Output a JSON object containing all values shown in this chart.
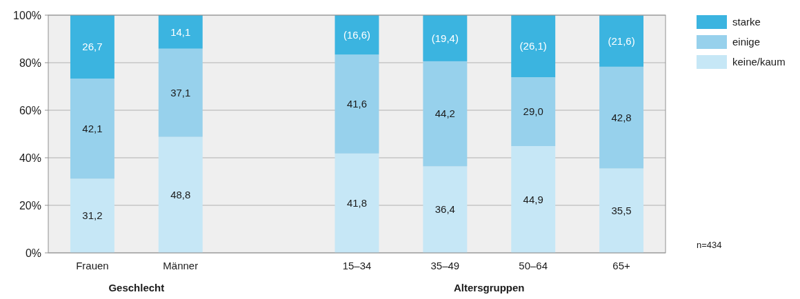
{
  "chart_data": {
    "type": "bar",
    "stacked": true,
    "categories": [
      "Frauen",
      "Männer",
      null,
      "15–34",
      "35–49",
      "50–64",
      "65+"
    ],
    "series": [
      {
        "name": "keine/kaum",
        "color": "#c6e7f6",
        "values": [
          31.2,
          48.8,
          null,
          41.8,
          36.4,
          44.9,
          35.5
        ],
        "value_labels": [
          "31,2",
          "48,8",
          null,
          "41,8",
          "36,4",
          "44,9",
          "35,5"
        ]
      },
      {
        "name": "einige",
        "color": "#97d1ec",
        "values": [
          42.1,
          37.1,
          null,
          41.6,
          44.2,
          29.0,
          42.8
        ],
        "value_labels": [
          "42,1",
          "37,1",
          null,
          "41,6",
          "44,2",
          "29,0",
          "42,8"
        ]
      },
      {
        "name": "starke",
        "color": "#3bb4e0",
        "values": [
          26.7,
          14.1,
          null,
          16.6,
          19.4,
          26.1,
          21.6
        ],
        "value_labels": [
          "26,7",
          "14,1",
          null,
          "(16,6)",
          "(19,4)",
          "(26,1)",
          "(21,6)"
        ]
      }
    ],
    "ylim": [
      0,
      100
    ],
    "yticks": [
      {
        "value": 0,
        "label": "0%"
      },
      {
        "value": 20,
        "label": "20%"
      },
      {
        "value": 40,
        "label": "40%"
      },
      {
        "value": 60,
        "label": "60%"
      },
      {
        "value": 80,
        "label": "80%"
      },
      {
        "value": 100,
        "label": "100%"
      }
    ],
    "grid": "y",
    "legend": "top right",
    "annotations": [
      "Geschlecht",
      "Altersgruppen",
      "n=434"
    ]
  }
}
